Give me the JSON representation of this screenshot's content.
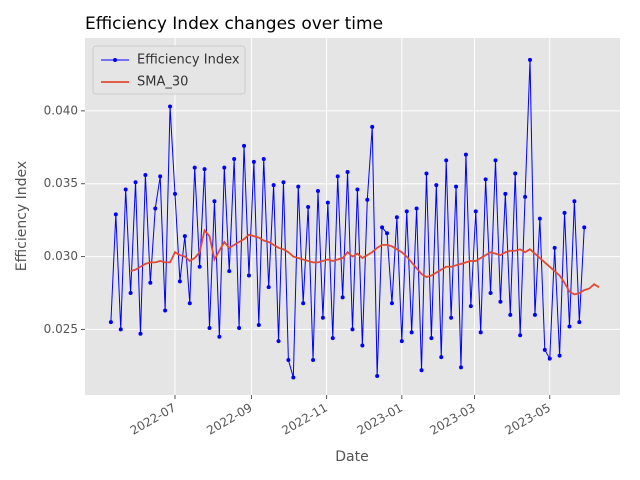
{
  "chart_data": {
    "type": "line",
    "title": "Efficiency Index changes over time",
    "xlabel": "Date",
    "ylabel": "Efficiency Index",
    "x": [
      "2022-05-10",
      "2022-05-14",
      "2022-05-18",
      "2022-05-22",
      "2022-05-26",
      "2022-05-30",
      "2022-06-03",
      "2022-06-07",
      "2022-06-11",
      "2022-06-15",
      "2022-06-19",
      "2022-06-23",
      "2022-06-27",
      "2022-07-01",
      "2022-07-05",
      "2022-07-09",
      "2022-07-13",
      "2022-07-17",
      "2022-07-21",
      "2022-07-25",
      "2022-07-29",
      "2022-08-02",
      "2022-08-06",
      "2022-08-10",
      "2022-08-14",
      "2022-08-18",
      "2022-08-22",
      "2022-08-26",
      "2022-08-30",
      "2022-09-03",
      "2022-09-07",
      "2022-09-11",
      "2022-09-15",
      "2022-09-19",
      "2022-09-23",
      "2022-09-27",
      "2022-10-01",
      "2022-10-05",
      "2022-10-09",
      "2022-10-13",
      "2022-10-17",
      "2022-10-21",
      "2022-10-25",
      "2022-10-29",
      "2022-11-02",
      "2022-11-06",
      "2022-11-10",
      "2022-11-14",
      "2022-11-18",
      "2022-11-22",
      "2022-11-26",
      "2022-11-30",
      "2022-12-04",
      "2022-12-08",
      "2022-12-12",
      "2022-12-16",
      "2022-12-20",
      "2022-12-24",
      "2022-12-28",
      "2023-01-01",
      "2023-01-05",
      "2023-01-09",
      "2023-01-13",
      "2023-01-17",
      "2023-01-21",
      "2023-01-25",
      "2023-01-29",
      "2023-02-02",
      "2023-02-06",
      "2023-02-10",
      "2023-02-14",
      "2023-02-18",
      "2023-02-22",
      "2023-02-26",
      "2023-03-02",
      "2023-03-06",
      "2023-03-10",
      "2023-03-14",
      "2023-03-18",
      "2023-03-22",
      "2023-03-26",
      "2023-03-30",
      "2023-04-03",
      "2023-04-07",
      "2023-04-11",
      "2023-04-15",
      "2023-04-19",
      "2023-04-23",
      "2023-04-27",
      "2023-05-01",
      "2023-05-05",
      "2023-05-09",
      "2023-05-13",
      "2023-05-17",
      "2023-05-21",
      "2023-05-25",
      "2023-05-29",
      "2023-06-02",
      "2023-06-06",
      "2023-06-10"
    ],
    "series": [
      {
        "name": "Efficiency Index",
        "color": "#0000ff",
        "marker": true,
        "values": [
          0.0255,
          0.0329,
          0.025,
          0.0346,
          0.0275,
          0.0351,
          0.0247,
          0.0356,
          0.0282,
          0.0333,
          0.0355,
          0.0263,
          0.0403,
          0.0343,
          0.0283,
          0.0314,
          0.0268,
          0.0361,
          0.0293,
          0.036,
          0.0251,
          0.0338,
          0.0245,
          0.0361,
          0.029,
          0.0367,
          0.0251,
          0.0376,
          0.0287,
          0.0365,
          0.0253,
          0.0367,
          0.0279,
          0.0349,
          0.0242,
          0.0351,
          0.0229,
          0.0217,
          0.0348,
          0.0268,
          0.0334,
          0.0229,
          0.0345,
          0.0258,
          0.0337,
          0.0244,
          0.0355,
          0.0272,
          0.0358,
          0.025,
          0.0346,
          0.0239,
          0.0339,
          0.0389,
          0.0218,
          0.032,
          0.0316,
          0.0268,
          0.0327,
          0.0242,
          0.0331,
          0.0248,
          0.0333,
          0.0222,
          0.0357,
          0.0244,
          0.0349,
          0.0231,
          0.0366,
          0.0258,
          0.0348,
          0.0224,
          0.037,
          0.0266,
          0.0331,
          0.0248,
          0.0353,
          0.0275,
          0.0366,
          0.0269,
          0.0343,
          0.026,
          0.0357,
          0.0246,
          0.0341,
          0.0435,
          0.026,
          0.0326,
          0.0236,
          0.023,
          0.0306,
          0.0232,
          0.033,
          0.0252,
          0.0338,
          0.0255,
          0.032,
          null,
          null,
          null
        ]
      },
      {
        "name": "SMA_30",
        "color": "#e24a33",
        "marker": false,
        "values": [
          null,
          null,
          null,
          null,
          0.029,
          0.0291,
          0.0293,
          0.0295,
          0.0296,
          0.0296,
          0.0297,
          0.0296,
          0.0296,
          0.0303,
          0.0301,
          0.03,
          0.0297,
          0.0299,
          0.0303,
          0.0318,
          0.0314,
          0.0298,
          0.0304,
          0.031,
          0.0306,
          0.0308,
          0.031,
          0.0312,
          0.0315,
          0.0314,
          0.0313,
          0.0311,
          0.031,
          0.0308,
          0.0306,
          0.0305,
          0.0303,
          0.03,
          0.0299,
          0.0298,
          0.0297,
          0.0296,
          0.0296,
          0.0297,
          0.0298,
          0.0297,
          0.0298,
          0.0299,
          0.0303,
          0.03,
          0.0302,
          0.0299,
          0.0301,
          0.0303,
          0.0306,
          0.0308,
          0.0308,
          0.0307,
          0.0305,
          0.0303,
          0.03,
          0.0296,
          0.0292,
          0.0288,
          0.0286,
          0.0287,
          0.0289,
          0.0291,
          0.0293,
          0.0293,
          0.0294,
          0.0295,
          0.0296,
          0.0297,
          0.0297,
          0.0299,
          0.0301,
          0.0303,
          0.0302,
          0.0301,
          0.0303,
          0.0304,
          0.0304,
          0.0305,
          0.0303,
          0.0305,
          0.0302,
          0.0299,
          0.0296,
          0.0293,
          0.029,
          0.0287,
          0.0282,
          0.0276,
          0.0274,
          0.0275,
          0.0277,
          0.0278,
          0.0281,
          0.0279
        ]
      }
    ],
    "xlim": [
      "2022-04-19",
      "2023-06-27"
    ],
    "xticks": [
      {
        "value": "2022-07-01",
        "label": "2022-07"
      },
      {
        "value": "2022-09-01",
        "label": "2022-09"
      },
      {
        "value": "2022-11-01",
        "label": "2022-11"
      },
      {
        "value": "2023-01-01",
        "label": "2023-01"
      },
      {
        "value": "2023-03-01",
        "label": "2023-03"
      },
      {
        "value": "2023-05-01",
        "label": "2023-05"
      }
    ],
    "ylim": [
      0.0205,
      0.045
    ],
    "yticks": [
      {
        "value": 0.025,
        "label": "0.025"
      },
      {
        "value": 0.03,
        "label": "0.030"
      },
      {
        "value": 0.035,
        "label": "0.035"
      },
      {
        "value": 0.04,
        "label": "0.040"
      }
    ],
    "grid": true,
    "legend": "upper left"
  }
}
